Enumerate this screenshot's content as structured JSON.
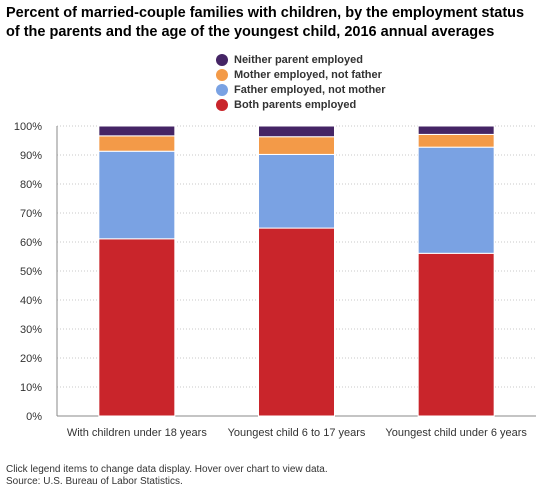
{
  "title_line1": "Percent of married-couple families with children, by the employment status",
  "title_line2": "of the parents and the age of the youngest child, 2016 annual averages",
  "footer_note": "Click legend items to change data display. Hover over chart to view data.",
  "footer_source": "Source: U.S. Bureau of Labor Statistics.",
  "chart_data": {
    "type": "bar",
    "stacked": true,
    "categories": [
      "With children under 18 years",
      "Youngest child 6 to 17 years",
      "Youngest child under 6 years"
    ],
    "series": [
      {
        "name": "Both parents employed",
        "color": "#c9252b",
        "values": [
          61.1,
          64.8,
          56.1
        ]
      },
      {
        "name": "Father employed, not mother",
        "color": "#7aa2e3",
        "values": [
          30.2,
          25.4,
          36.6
        ]
      },
      {
        "name": "Mother employed, not father",
        "color": "#f39a48",
        "values": [
          5.3,
          6.1,
          4.4
        ]
      },
      {
        "name": "Neither parent employed",
        "color": "#452565",
        "values": [
          3.4,
          3.7,
          2.9
        ]
      }
    ],
    "legend_order": [
      3,
      2,
      1,
      0
    ],
    "ylim": [
      0,
      100
    ],
    "yticks": [
      "0%",
      "10%",
      "20%",
      "30%",
      "40%",
      "50%",
      "60%",
      "70%",
      "80%",
      "90%",
      "100%"
    ],
    "ytick_values": [
      0,
      10,
      20,
      30,
      40,
      50,
      60,
      70,
      80,
      90,
      100
    ],
    "grid": true,
    "legend_position": "top-center"
  }
}
